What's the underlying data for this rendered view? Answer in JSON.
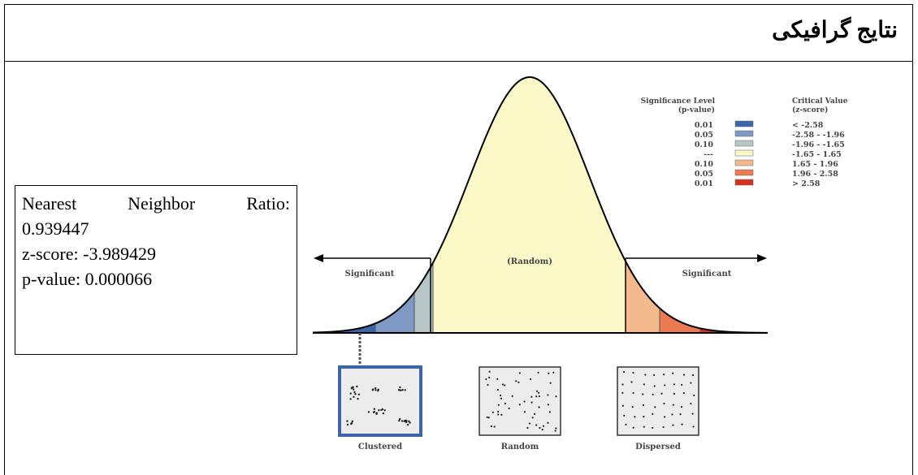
{
  "header": {
    "title": "نتایج گرافیکی"
  },
  "textbox": {
    "lines": [
      "Nearest Neighbor Ratio:",
      "0.939447",
      "z-score: -3.989429",
      "p-value: 0.000066"
    ]
  },
  "figure": {
    "legend": {
      "level_title": [
        "Significance Level",
        "(p-value)"
      ],
      "value_title": [
        "Critical Value",
        "(z-score)"
      ],
      "rows": [
        {
          "p": "0.01",
          "z": "< -2.58",
          "color": "#3d66a9"
        },
        {
          "p": "0.05",
          "z": "-2.58 - -1.96",
          "color": "#7d99c4"
        },
        {
          "p": "0.10",
          "z": "-1.96 - -1.65",
          "color": "#b8c5c6"
        },
        {
          "p": "---",
          "z": "-1.65 - 1.65",
          "color": "#fcf9c9"
        },
        {
          "p": "0.10",
          "z": "1.65 - 1.96",
          "color": "#f5b98e"
        },
        {
          "p": "0.05",
          "z": "1.96 - 2.58",
          "color": "#eb7a50"
        },
        {
          "p": "0.01",
          "z": "> 2.58",
          "color": "#d6321f"
        }
      ]
    },
    "labels": {
      "left": "Significant",
      "center": "(Random)",
      "right": "Significant"
    },
    "patterns": [
      "Clustered",
      "Random",
      "Dispersed"
    ]
  }
}
